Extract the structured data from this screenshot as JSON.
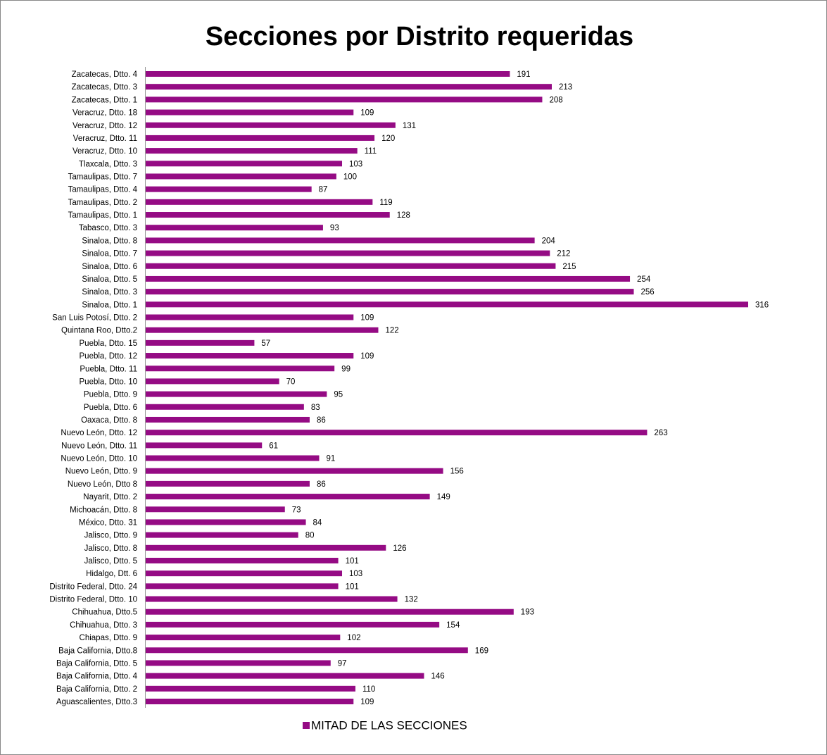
{
  "chart_data": {
    "type": "bar",
    "orientation": "horizontal",
    "title": "Secciones por Distrito requeridas",
    "categories": [
      "Zacatecas, Dtto. 4",
      "Zacatecas, Dtto. 3",
      "Zacatecas, Dtto. 1",
      "Veracruz, Dtto. 18",
      "Veracruz, Dtto. 12",
      "Veracruz, Dtto. 11",
      "Veracruz, Dtto. 10",
      "Tlaxcala, Dtto. 3",
      "Tamaulipas, Dtto. 7",
      "Tamaulipas, Dtto. 4",
      "Tamaulipas, Dtto. 2",
      "Tamaulipas, Dtto. 1",
      "Tabasco, Dtto. 3",
      "Sinaloa, Dtto. 8",
      "Sinaloa, Dtto. 7",
      "Sinaloa, Dtto. 6",
      "Sinaloa, Dtto. 5",
      "Sinaloa, Dtto. 3",
      "Sinaloa, Dtto. 1",
      "San Luis Potosí, Dtto. 2",
      "Quintana Roo, Dtto.2",
      "Puebla, Dtto. 15",
      "Puebla, Dtto. 12",
      "Puebla, Dtto. 11",
      "Puebla, Dtto. 10",
      "Puebla, Dtto. 9",
      "Puebla, Dtto. 6",
      "Oaxaca, Dtto. 8",
      "Nuevo León, Dtto. 12",
      "Nuevo León, Dtto. 11",
      "Nuevo León, Dtto. 10",
      "Nuevo León, Dtto. 9",
      "Nuevo León, Dtto 8",
      "Nayarit, Dtto. 2",
      "Michoacán, Dtto. 8",
      "México, Dtto. 31",
      "Jalisco, Dtto. 9",
      "Jalisco, Dtto. 8",
      "Jalisco, Dtto. 5",
      "Hidalgo, Dtt. 6",
      "Distrito Federal, Dtto. 24",
      "Distrito Federal, Dtto. 10",
      "Chihuahua, Dtto.5",
      "Chihuahua, Dtto. 3",
      "Chiapas, Dtto. 9",
      "Baja California, Dtto.8",
      "Baja California, Dtto. 5",
      "Baja California, Dtto. 4",
      "Baja California, Dtto. 2",
      "Aguascalientes, Dtto.3"
    ],
    "series": [
      {
        "name": "MITAD DE LAS SECCIONES",
        "color": "#950b84",
        "values": [
          191,
          213,
          208,
          109,
          131,
          120,
          111,
          103,
          100,
          87,
          119,
          128,
          93,
          204,
          212,
          215,
          254,
          256,
          316,
          109,
          122,
          57,
          109,
          99,
          70,
          95,
          83,
          86,
          263,
          61,
          91,
          156,
          86,
          149,
          73,
          84,
          80,
          126,
          101,
          103,
          101,
          132,
          193,
          154,
          102,
          169,
          97,
          146,
          110,
          109
        ]
      }
    ],
    "legend": "bottom"
  }
}
